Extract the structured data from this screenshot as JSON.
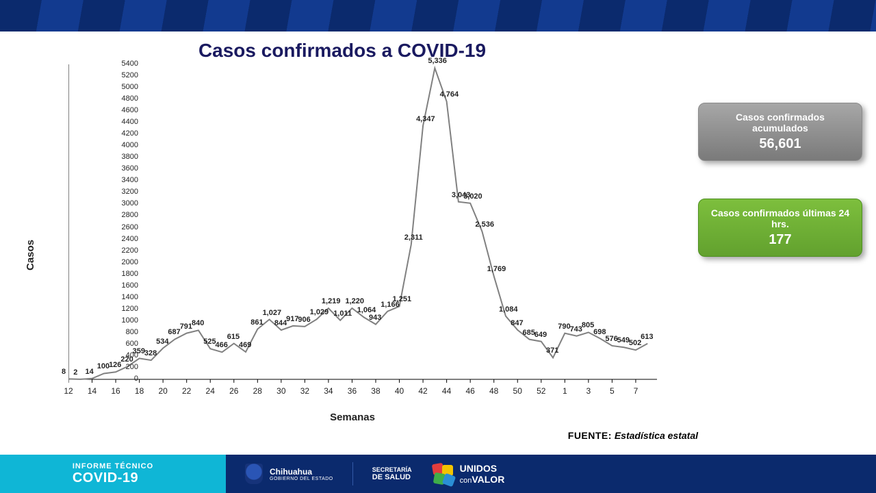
{
  "title": "Casos confirmados a COVID-19",
  "chart": {
    "type": "line",
    "y_title": "Casos",
    "x_title": "Semanas",
    "ylim": [
      0,
      5400
    ],
    "ytick_step": 200,
    "line_color": "#808080",
    "line_width": 2,
    "axis_color": "#000000",
    "tick_fontsize": 11,
    "axis_title_fontsize": 15,
    "label_fontsize": 11,
    "label_color": "#222222",
    "background_color": "#ffffff",
    "x_labels": [
      "12",
      "",
      "14",
      "",
      "16",
      "",
      "18",
      "",
      "20",
      "",
      "22",
      "",
      "24",
      "",
      "26",
      "",
      "28",
      "",
      "30",
      "",
      "32",
      "",
      "34",
      "",
      "36",
      "",
      "38",
      "",
      "40",
      "",
      "42",
      "",
      "44",
      "",
      "46",
      "",
      "48",
      "",
      "50",
      "",
      "52",
      "",
      "1",
      "",
      "3",
      "",
      "5",
      "",
      "7",
      ""
    ],
    "values": [
      8,
      2,
      14,
      100,
      126,
      220,
      359,
      328,
      534,
      687,
      791,
      840,
      525,
      466,
      615,
      469,
      861,
      1027,
      844,
      917,
      906,
      1029,
      1219,
      1011,
      1220,
      1064,
      943,
      1166,
      1251,
      2311,
      4347,
      5336,
      4764,
      3043,
      3020,
      2536,
      1769,
      1084,
      847,
      685,
      649,
      371,
      790,
      743,
      805,
      698,
      576,
      549,
      502,
      613
    ],
    "value_labels": [
      "8",
      "2",
      "14",
      "100",
      "126",
      "220",
      "359",
      "328",
      "534",
      "687",
      "791",
      "840",
      "525",
      "466",
      "615",
      "469",
      "861",
      "1,027",
      "844",
      "917",
      "906",
      "1,029",
      "1,219",
      "1,011",
      "1,220",
      "1,064",
      "943",
      "1,166",
      "1,251",
      "2,311",
      "4,347",
      "5,336",
      "4,764",
      "3,043",
      "3,020",
      "2,536",
      "1,769",
      "1,084",
      "847",
      "685",
      "649",
      "371",
      "790",
      "743",
      "805",
      "698",
      "576",
      "549",
      "502",
      "613"
    ]
  },
  "card_gray": {
    "title": "Casos confirmados acumulados",
    "value": "56,601",
    "bg_from": "#a7a7a7",
    "bg_to": "#7a7a7a"
  },
  "card_green": {
    "title": "Casos confirmados  últimas 24 hrs.",
    "value": "177",
    "bg_from": "#7dbf3d",
    "bg_to": "#62a12e"
  },
  "source_label": "FUENTE:",
  "source_value": "Estadística estatal",
  "footer": {
    "report_top": "INFORME TÉCNICO",
    "report_bot": "COVID-19",
    "state": "Chihuahua",
    "state_sub": "GOBIERNO DEL ESTADO",
    "secretaria_top": "SECRETARÍA",
    "secretaria_bot": "DE SALUD",
    "unidos_top": "UNIDOS",
    "unidos_bot": "conVALOR",
    "cyan": "#0fb6d6",
    "navy": "#0b2a6d",
    "map_colors": [
      "#e33d3d",
      "#f3c400",
      "#3fae49",
      "#2a8fd6"
    ]
  }
}
